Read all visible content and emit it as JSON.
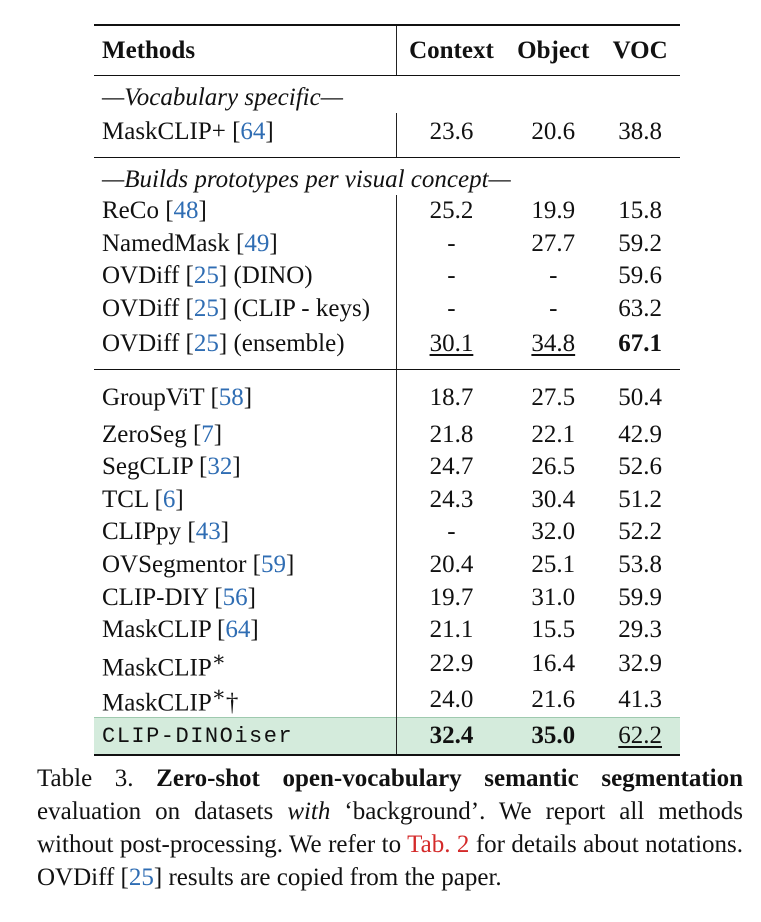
{
  "header": {
    "methods": "Methods",
    "context": "Context",
    "object": "Object",
    "voc": "VOC"
  },
  "group1": {
    "title": "—Vocabulary specific—",
    "rows": [
      {
        "method": "MaskCLIP+ [",
        "ref": "64",
        "suffix": "]",
        "context": "23.6",
        "object": "20.6",
        "voc": "38.8"
      }
    ]
  },
  "group2": {
    "title": "—Builds prototypes per visual concept—",
    "rows": [
      {
        "method": "ReCo [",
        "ref": "48",
        "suffix": "]",
        "context": "25.2",
        "object": "19.9",
        "voc": "15.8"
      },
      {
        "method": "NamedMask [",
        "ref": "49",
        "suffix": "]",
        "context": "-",
        "object": "27.7",
        "voc": "59.2"
      },
      {
        "method": "OVDiff [",
        "ref": "25",
        "suffix": "] (DINO)",
        "context": "-",
        "object": "-",
        "voc": "59.6"
      },
      {
        "method": "OVDiff [",
        "ref": "25",
        "suffix": "] (CLIP - keys)",
        "context": "-",
        "object": "-",
        "voc": "63.2"
      },
      {
        "method": "OVDiff [",
        "ref": "25",
        "suffix": "] (ensemble)",
        "context": "30.1",
        "object": "34.8",
        "voc": "67.1"
      }
    ]
  },
  "group3": {
    "rows": [
      {
        "method": "GroupViT [",
        "ref": "58",
        "suffix": "]",
        "context": "18.7",
        "object": "27.5",
        "voc": "50.4"
      },
      {
        "method": "ZeroSeg [",
        "ref": "7",
        "suffix": "]",
        "context": "21.8",
        "object": "22.1",
        "voc": "42.9"
      },
      {
        "method": "SegCLIP [",
        "ref": "32",
        "suffix": "]",
        "context": "24.7",
        "object": "26.5",
        "voc": "52.6"
      },
      {
        "method": "TCL [",
        "ref": "6",
        "suffix": "]",
        "context": "24.3",
        "object": "30.4",
        "voc": "51.2"
      },
      {
        "method": "CLIPpy [",
        "ref": "43",
        "suffix": "]",
        "context": "-",
        "object": "32.0",
        "voc": "52.2"
      },
      {
        "method": "OVSegmentor [",
        "ref": "59",
        "suffix": "]",
        "context": "20.4",
        "object": "25.1",
        "voc": "53.8"
      },
      {
        "method": "CLIP-DIY [",
        "ref": "56",
        "suffix": "]",
        "context": "19.7",
        "object": "31.0",
        "voc": "59.9"
      },
      {
        "method": "MaskCLIP [",
        "ref": "64",
        "suffix": "]",
        "context": "21.1",
        "object": "15.5",
        "voc": "29.3"
      },
      {
        "method": "MaskCLIP",
        "sup": "∗",
        "suffix": "",
        "context": "22.9",
        "object": "16.4",
        "voc": "32.9"
      },
      {
        "method": "MaskCLIP",
        "sup": "∗",
        "suffix": "†",
        "context": "24.0",
        "object": "21.6",
        "voc": "41.3"
      }
    ]
  },
  "ours": {
    "method": "CLIP-DINOiser",
    "context": "32.4",
    "object": "35.0",
    "voc": "62.2"
  },
  "caption": {
    "label": "Table 3.  ",
    "bold": "Zero-shot open-vocabulary semantic segmentation",
    "t1": " evaluation on datasets ",
    "italic": "with",
    "t2": " ‘background’. We report all methods without post-processing. We refer to ",
    "tabref": "Tab. 2",
    "t3": " for details about notations. OVDiff [",
    "ref": "25",
    "t4": "] results are copied from the paper."
  }
}
